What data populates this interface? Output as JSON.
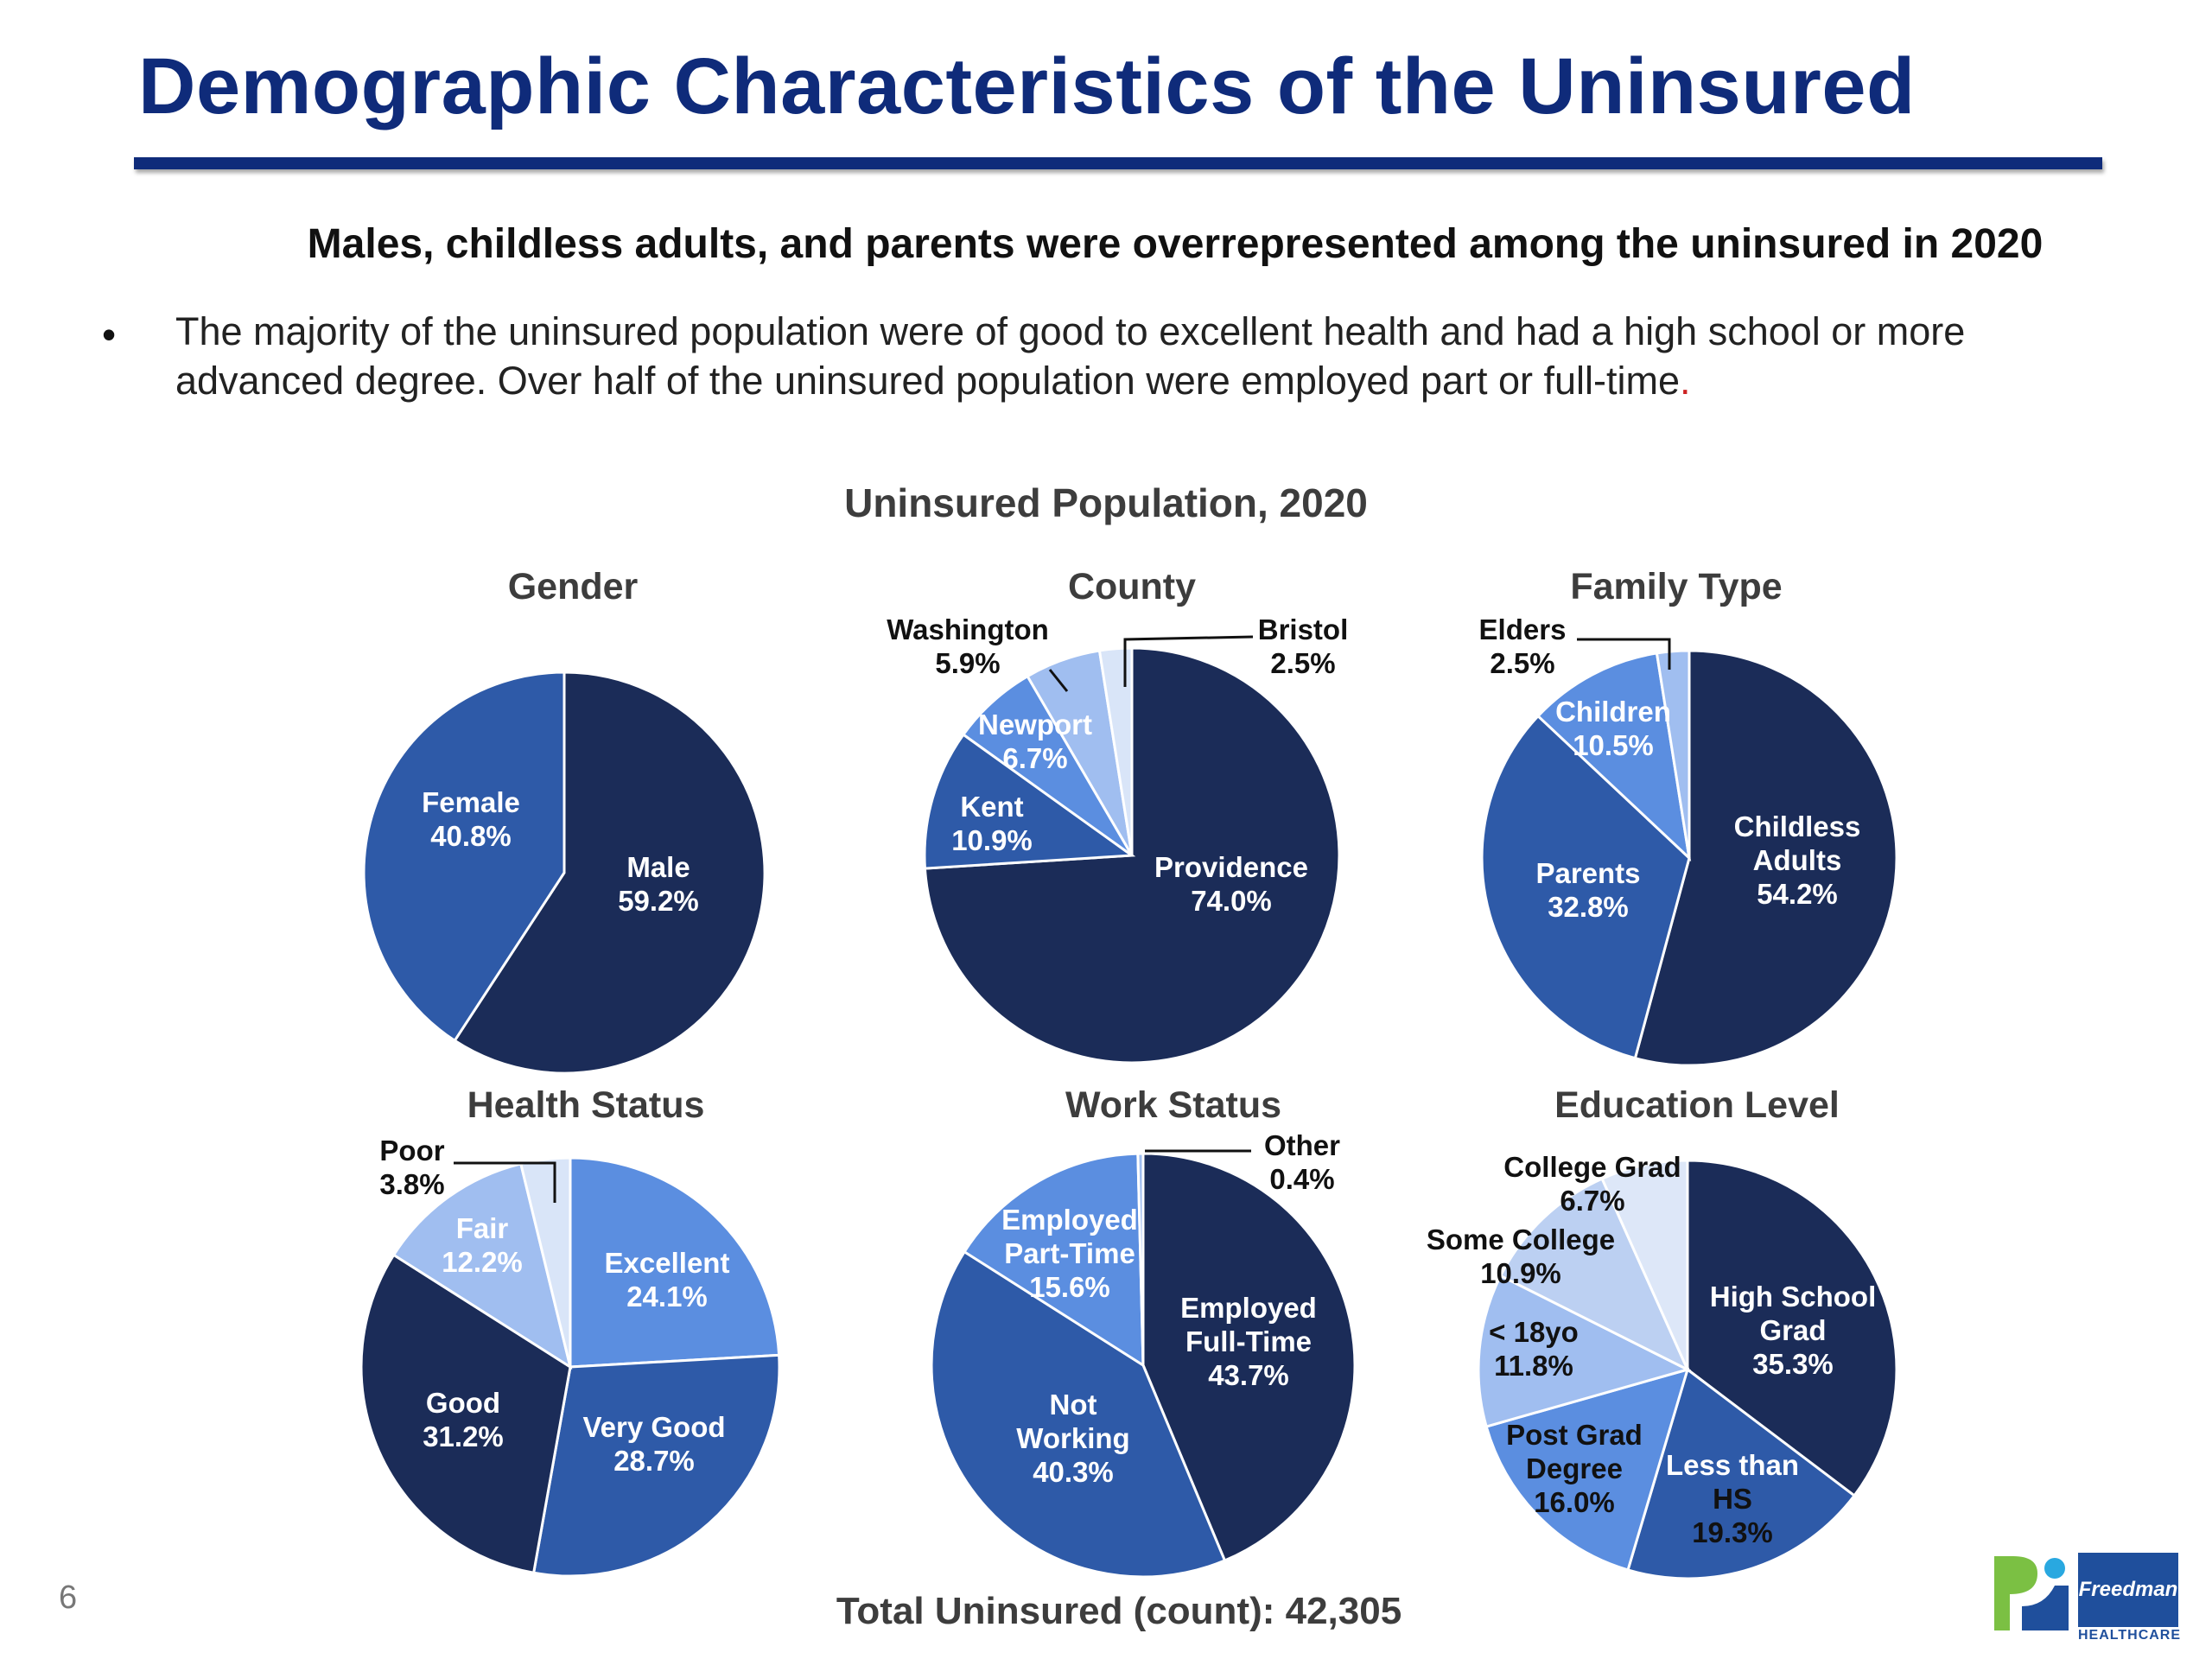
{
  "slide": {
    "title": "Demographic Characteristics of the Uninsured",
    "subtitle": "Males, childless adults, and parents were overrepresented among the uninsured in 2020",
    "bullet_text": "The majority of the uninsured population were of good to excellent health and had a high school or more advanced degree. Over half of the uninsured population were employed part or full-time",
    "bullet_dot": ".",
    "figure_title": "Uninsured Population, 2020",
    "total": "Total Uninsured (count): 42,305",
    "page_number": "6",
    "logo_text": "Freedman",
    "logo_tagline": "HEALTHCARE",
    "colors": {
      "title": "#0f2b7a",
      "text": "#3d3d3d"
    }
  },
  "chart_data": [
    {
      "type": "pie",
      "title": "Gender",
      "series": [
        {
          "category": "Male",
          "value": 59.2,
          "label": "59.2%",
          "color": "#1b2c58"
        },
        {
          "category": "Female",
          "value": 40.8,
          "label": "40.8%",
          "color": "#2e5aa8"
        }
      ]
    },
    {
      "type": "pie",
      "title": "County",
      "series": [
        {
          "category": "Providence",
          "value": 74.0,
          "label": "74.0%",
          "color": "#1b2c58"
        },
        {
          "category": "Kent",
          "value": 10.9,
          "label": "10.9%",
          "color": "#2e5aa8"
        },
        {
          "category": "Newport",
          "value": 6.7,
          "label": "6.7%",
          "color": "#5b8ee0"
        },
        {
          "category": "Washington",
          "value": 5.9,
          "label": "5.9%",
          "color": "#a0bef0"
        },
        {
          "category": "Bristol",
          "value": 2.5,
          "label": "2.5%",
          "color": "#d9e5f8"
        }
      ]
    },
    {
      "type": "pie",
      "title": "Family Type",
      "series": [
        {
          "category": "Childless Adults",
          "value": 54.2,
          "label": "54.2%",
          "color": "#1b2c58"
        },
        {
          "category": "Parents",
          "value": 32.8,
          "label": "32.8%",
          "color": "#2e5aa8"
        },
        {
          "category": "Children",
          "value": 10.5,
          "label": "10.5%",
          "color": "#5b8ee0"
        },
        {
          "category": "Elders",
          "value": 2.5,
          "label": "2.5%",
          "color": "#a0bef0"
        }
      ]
    },
    {
      "type": "pie",
      "title": "Health Status",
      "series": [
        {
          "category": "Excellent",
          "value": 24.1,
          "label": "24.1%",
          "color": "#5b8ee0"
        },
        {
          "category": "Very Good",
          "value": 28.7,
          "label": "28.7%",
          "color": "#2e5aa8"
        },
        {
          "category": "Good",
          "value": 31.2,
          "label": "31.2%",
          "color": "#1b2c58"
        },
        {
          "category": "Fair",
          "value": 12.2,
          "label": "12.2%",
          "color": "#a0bef0"
        },
        {
          "category": "Poor",
          "value": 3.8,
          "label": "3.8%",
          "color": "#d9e5f8"
        }
      ]
    },
    {
      "type": "pie",
      "title": "Work Status",
      "series": [
        {
          "category": "Employed Full-Time",
          "value": 43.7,
          "label": "43.7%",
          "color": "#1b2c58"
        },
        {
          "category": "Not Working",
          "value": 40.3,
          "label": "40.3%",
          "color": "#2e5aa8"
        },
        {
          "category": "Employed Part-Time",
          "value": 15.6,
          "label": "15.6%",
          "color": "#5b8ee0"
        },
        {
          "category": "Other",
          "value": 0.4,
          "label": "0.4%",
          "color": "#a0bef0"
        }
      ]
    },
    {
      "type": "pie",
      "title": "Education Level",
      "series": [
        {
          "category": "High School Grad",
          "value": 35.3,
          "label": "35.3%",
          "color": "#1b2c58"
        },
        {
          "category": "Less than HS",
          "value": 19.3,
          "label": "19.3%",
          "color": "#2e5aa8"
        },
        {
          "category": "Post Grad Degree",
          "value": 16.0,
          "label": "16.0%",
          "color": "#5b8ee0"
        },
        {
          "category": "< 18yo",
          "value": 11.8,
          "label": "11.8%",
          "color": "#a0bef0"
        },
        {
          "category": "Some College",
          "value": 10.9,
          "label": "10.9%",
          "color": "#bcd0f2"
        },
        {
          "category": "College Grad",
          "value": 6.7,
          "label": "6.7%",
          "color": "#dde7f8"
        }
      ]
    }
  ]
}
